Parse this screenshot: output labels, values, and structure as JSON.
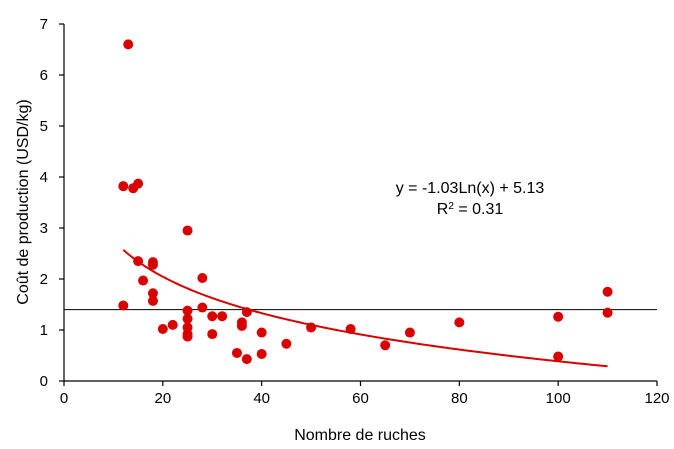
{
  "chart_data": {
    "type": "scatter",
    "xlabel": "Nombre de ruches",
    "ylabel": "Coût de production (USD/kg)",
    "xlim": [
      0,
      120
    ],
    "ylim": [
      0,
      7
    ],
    "xticks": [
      "0",
      "20",
      "40",
      "60",
      "80",
      "100",
      "120"
    ],
    "yticks": [
      "0",
      "1",
      "2",
      "3",
      "4",
      "5",
      "6",
      "7"
    ],
    "grid": false,
    "legend": "none",
    "colors": {
      "points": "#d90000",
      "trendline": "#d90000",
      "reference_line": "#000000",
      "axes": "#000000"
    },
    "points": [
      [
        12,
        3.82
      ],
      [
        12,
        1.48
      ],
      [
        13,
        6.6
      ],
      [
        14,
        3.78
      ],
      [
        15,
        3.87
      ],
      [
        15,
        2.35
      ],
      [
        16,
        1.97
      ],
      [
        18,
        2.33
      ],
      [
        18,
        2.28
      ],
      [
        18,
        1.72
      ],
      [
        18,
        1.57
      ],
      [
        20,
        1.02
      ],
      [
        22,
        1.1
      ],
      [
        25,
        2.95
      ],
      [
        25,
        1.38
      ],
      [
        25,
        1.22
      ],
      [
        25,
        1.05
      ],
      [
        25,
        0.92
      ],
      [
        25,
        0.87
      ],
      [
        28,
        2.02
      ],
      [
        28,
        1.44
      ],
      [
        30,
        1.27
      ],
      [
        30,
        0.92
      ],
      [
        32,
        1.27
      ],
      [
        35,
        0.55
      ],
      [
        36,
        1.15
      ],
      [
        36,
        1.08
      ],
      [
        37,
        1.35
      ],
      [
        37,
        0.43
      ],
      [
        40,
        0.95
      ],
      [
        40,
        0.53
      ],
      [
        45,
        0.73
      ],
      [
        50,
        1.05
      ],
      [
        58,
        1.02
      ],
      [
        65,
        0.7
      ],
      [
        70,
        0.95
      ],
      [
        80,
        1.15
      ],
      [
        100,
        1.26
      ],
      [
        100,
        0.48
      ],
      [
        110,
        1.75
      ],
      [
        110,
        1.34
      ]
    ],
    "trendline": {
      "type": "log",
      "a": -1.03,
      "b": 5.13,
      "x_range": [
        12,
        110
      ]
    },
    "reference_line": {
      "y": 1.4
    },
    "annotations": {
      "equation": "y = -1.03Ln(x) + 5.13",
      "r2_prefix": "R",
      "r2_sup": "2",
      "r2_suffix": " = 0.31"
    }
  }
}
